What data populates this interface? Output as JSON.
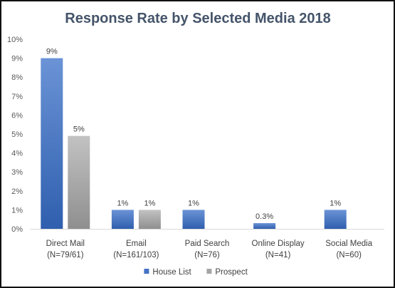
{
  "chart_data": {
    "type": "bar",
    "title": "Response Rate by Selected Media 2018",
    "categories": [
      [
        "Direct Mail",
        "(N=79/61)"
      ],
      [
        "Email",
        "(N=161/103)"
      ],
      [
        "Paid Search",
        "(N=76)"
      ],
      [
        "Online Display",
        "(N=41)"
      ],
      [
        "Social Media",
        "(N=60)"
      ]
    ],
    "series": [
      {
        "name": "House List",
        "color": "#4472c4",
        "values": [
          9,
          1,
          1,
          0.3,
          1
        ],
        "labels": [
          "9%",
          "1%",
          "1%",
          "0.3%",
          "1%"
        ]
      },
      {
        "name": "Prospect",
        "color": "#a5a5a5",
        "values": [
          4.9,
          1,
          null,
          null,
          null
        ],
        "labels": [
          "5%",
          "1%",
          "",
          "",
          ""
        ]
      }
    ],
    "ylim": [
      0,
      10
    ],
    "yticks": [
      "0%",
      "1%",
      "2%",
      "3%",
      "4%",
      "5%",
      "6%",
      "7%",
      "8%",
      "9%",
      "10%"
    ],
    "grid": false,
    "legend": "bottom"
  }
}
